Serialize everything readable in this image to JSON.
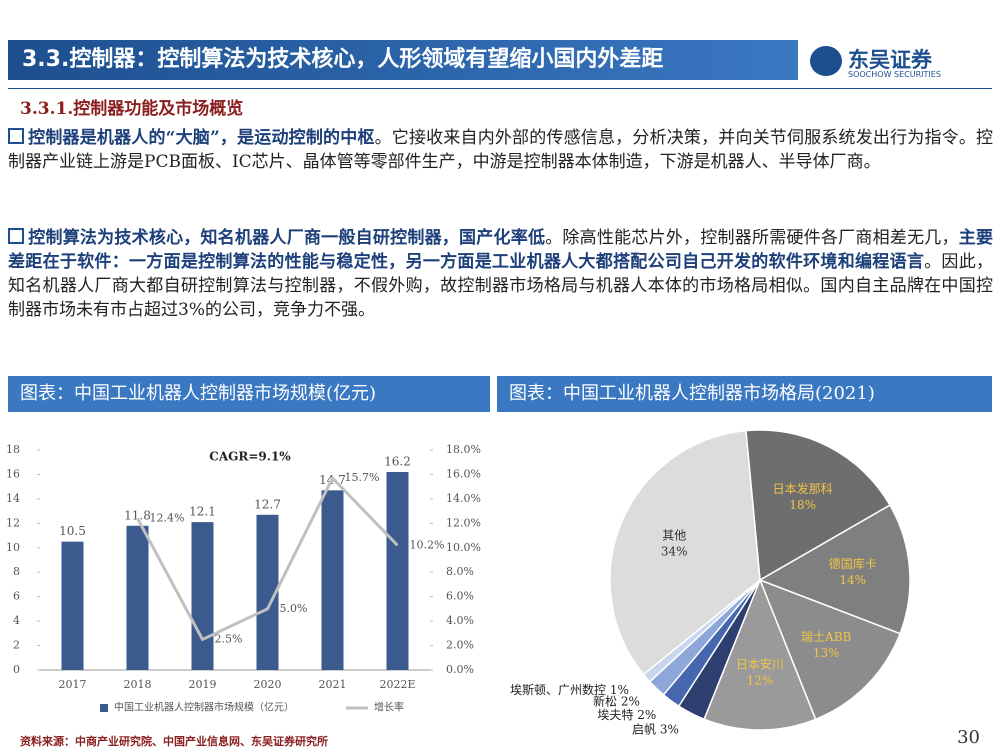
{
  "header": {
    "title": "3.3.控制器：控制算法为技术核心，人形领域有望缩小国内外差距",
    "logo": "东吴证券",
    "logo_sub": "SOOCHOW SECURITIES"
  },
  "section": "3.3.1.控制器功能及市场概览",
  "paragraphs": [
    [
      {
        "text": "控制器是机器人的“大脑”，是运动控制的中枢",
        "bold": true
      },
      {
        "text": "。它接收来自内外部的传感信息，分析决策，并向关节伺服系统发出行为指令。控制器产业链上游是PCB面板、IC芯片、晶体管等零部件生产，中游是控制器本体制造，下游是机器人、半导体厂商。",
        "bold": false
      }
    ],
    [
      {
        "text": "控制算法为技术核心，知名机器人厂商一般自研控制器，国产化率低",
        "bold": true
      },
      {
        "text": "。除高性能芯片外，控制器所需硬件各厂商相差无几，",
        "bold": false
      },
      {
        "text": "主要差距在于软件：一方面是控制算法的性能与稳定性，另一方面是工业机器人大都搭配公司自己开发的软件环境和编程语言",
        "bold": true
      },
      {
        "text": "。因此，知名机器人厂商大都自研控制算法与控制器，不假外购，故控制器市场格局与机器人本体的市场格局相似。国内自主品牌在中国控制器市场未有市占超过3%的公司，竞争力不强。",
        "bold": false
      }
    ]
  ],
  "panels": [
    "图表：中国工业机器人控制器市场规模(亿元)",
    "图表：中国工业机器人控制器市场格局(2021)"
  ],
  "chart_data": [
    {
      "type": "bar-line",
      "annotation": "CAGR=9.1%",
      "categories": [
        "2017",
        "2018",
        "2019",
        "2020",
        "2021",
        "2022E"
      ],
      "series": [
        {
          "name": "中国工业机器人控制器市场规模（亿元）",
          "type": "bar",
          "color": "#3b5a8e",
          "values": [
            10.5,
            11.8,
            12.1,
            12.7,
            14.7,
            16.2
          ]
        },
        {
          "name": "增长率",
          "type": "line",
          "axis": "y2",
          "color": "#c0c0c0",
          "values": [
            null,
            12.4,
            2.5,
            5.0,
            15.7,
            10.2
          ],
          "value_labels": [
            null,
            "12.4%",
            "2.5%",
            "5.0%",
            "15.7%",
            "10.2%"
          ]
        }
      ],
      "ylim": [
        0,
        18
      ],
      "yticks": [
        0,
        2,
        4,
        6,
        8,
        10,
        12,
        14,
        16,
        18
      ],
      "y2lim": [
        0,
        18
      ],
      "y2ticks": [
        {
          "value": 0,
          "label": "0.0%"
        },
        {
          "value": 2,
          "label": "2.0%"
        },
        {
          "value": 4,
          "label": "4.0%"
        },
        {
          "value": 6,
          "label": "6.0%"
        },
        {
          "value": 8,
          "label": "8.0%"
        },
        {
          "value": 10,
          "label": "10.0%"
        },
        {
          "value": 12,
          "label": "12.0%"
        },
        {
          "value": 14,
          "label": "14.0%"
        },
        {
          "value": 16,
          "label": "16.0%"
        },
        {
          "value": 18,
          "label": "18.0%"
        }
      ]
    },
    {
      "type": "pie",
      "categories": [
        "日本发那科",
        "德国库卡",
        "瑞士ABB",
        "日本安川",
        "启帆",
        "埃夫特",
        "新松",
        "埃斯顿、广州数控",
        "其他"
      ],
      "values": [
        18,
        14,
        13,
        12,
        3,
        2,
        2,
        1,
        34
      ],
      "value_labels": [
        "18%",
        "14%",
        "13%",
        "12%",
        "3%",
        "2%",
        "2%",
        "1%",
        "34%"
      ],
      "colors": [
        "#6e6e6e",
        "#7f7f7f",
        "#8c8c8c",
        "#9a9a9a",
        "#2d3f6e",
        "#4666ad",
        "#8ea7db",
        "#c9d6ef",
        "#dcdcdc"
      ]
    }
  ],
  "footer": {
    "source": "资料来源：中商产业研究院、中国产业信息网、东吴证券研究所",
    "page": "30"
  }
}
